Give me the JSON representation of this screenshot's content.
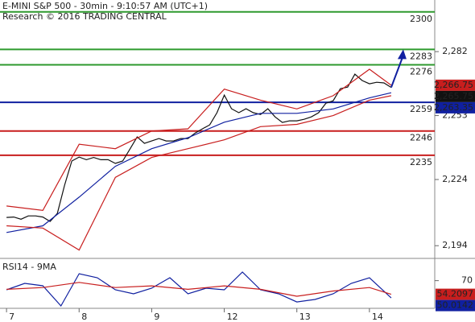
{
  "chart_data": {
    "type": "line",
    "title": "E-MINI S&P 500 - 30min - 9:10:57 AM (UTC+1)",
    "subtitle": "Research © 2016 TRADING CENTRAL",
    "xlim": [
      -0.09,
      5.9
    ],
    "xticks": [
      {
        "value": 0,
        "label": "7"
      },
      {
        "value": 1,
        "label": "8"
      },
      {
        "value": 2,
        "label": "9"
      },
      {
        "value": 3,
        "label": "12"
      },
      {
        "value": 4,
        "label": "13"
      },
      {
        "value": 5,
        "label": "14"
      }
    ],
    "ylim": [
      2188.6,
      2305.4
    ],
    "yticks": [
      {
        "value": 2282,
        "label": "2,282"
      },
      {
        "value": 2253,
        "label": "2,253"
      },
      {
        "value": 2224,
        "label": "2,224"
      },
      {
        "value": 2194,
        "label": "2,194"
      }
    ],
    "levels": [
      {
        "value": 2300,
        "color": "#2e9a2e"
      },
      {
        "value": 2283,
        "color": "#2e9a2e"
      },
      {
        "value": 2276,
        "color": "#2e9a2e"
      },
      {
        "value": 2259,
        "color": "#1020a0"
      },
      {
        "value": 2246,
        "color": "#c81e1e"
      },
      {
        "value": 2235,
        "color": "#c81e1e"
      }
    ],
    "series": [
      {
        "color": "#111111",
        "last_label": "2,265.75",
        "x": [
          0,
          0.1,
          0.2,
          0.3,
          0.4,
          0.5,
          0.6,
          0.7,
          0.8,
          0.9,
          1,
          1.1,
          1.2,
          1.3,
          1.4,
          1.5,
          1.6,
          1.7,
          1.8,
          1.9,
          2,
          2.1,
          2.2,
          2.3,
          2.4,
          2.5,
          2.6,
          2.7,
          2.8,
          2.9,
          3,
          3.1,
          3.2,
          3.3,
          3.4,
          3.5,
          3.6,
          3.7,
          3.8,
          3.9,
          4,
          4.1,
          4.2,
          4.3,
          4.4,
          4.5,
          4.6,
          4.7,
          4.8,
          4.9,
          5,
          5.1,
          5.2,
          5.3
        ],
        "values": [
          2206.8,
          2207,
          2206,
          2207.5,
          2207.5,
          2207,
          2205,
          2208.6,
          2221.4,
          2232.4,
          2234.2,
          2233,
          2234,
          2233,
          2233,
          2231.3,
          2232.4,
          2237.8,
          2243.3,
          2240.4,
          2241.5,
          2242.6,
          2241.5,
          2241.5,
          2242.6,
          2242.6,
          2245.1,
          2247,
          2248.8,
          2254.3,
          2262.3,
          2256.1,
          2254.3,
          2256.1,
          2254.3,
          2253.5,
          2256.1,
          2252.4,
          2249.9,
          2250.6,
          2250.6,
          2251.3,
          2252.4,
          2254.3,
          2258.6,
          2259.7,
          2265.2,
          2265.9,
          2271.8,
          2268.9,
          2267.4,
          2268.1,
          2267.8,
          2265.75
        ]
      },
      {
        "color": "#1020a0",
        "last_label": "2,263.35",
        "x": [
          0,
          0.5,
          1,
          1.5,
          2,
          2.5,
          3,
          3.5,
          4,
          4.5,
          5,
          5.3
        ],
        "values": [
          2200,
          2203,
          2216,
          2230,
          2238,
          2243,
          2250,
          2254,
          2254,
          2256,
          2261,
          2263.35
        ]
      },
      {
        "color": "#c81e1e",
        "last_label": "2,266.75",
        "x": [
          0,
          0.5,
          1,
          1.5,
          2,
          2.5,
          3,
          3.5,
          4,
          4.5,
          5,
          5.3
        ],
        "values": [
          2212,
          2210,
          2240,
          2238,
          2246,
          2247,
          2265,
          2260,
          2256,
          2262,
          2274,
          2266.75
        ]
      },
      {
        "color": "#c81e1e",
        "x": [
          0,
          0.5,
          1,
          1.5,
          2,
          2.5,
          3,
          3.5,
          4,
          4.5,
          5,
          5.3
        ],
        "values": [
          2203,
          2202,
          2192,
          2225,
          2234,
          2238,
          2242,
          2248,
          2249,
          2253,
          2260,
          2262
        ]
      }
    ],
    "target": 2283,
    "indicator": {
      "title": "RSI14 - 9MA",
      "ylim": [
        38,
        92
      ],
      "yticks": [
        70
      ],
      "series": [
        {
          "color": "#1020a0",
          "last_label": "50.0142",
          "x": [
            0,
            0.25,
            0.5,
            0.75,
            1,
            1.25,
            1.5,
            1.75,
            2,
            2.25,
            2.5,
            2.75,
            3,
            3.25,
            3.5,
            3.75,
            4,
            4.25,
            4.5,
            4.75,
            5,
            5.3
          ],
          "values": [
            59.4,
            66.9,
            64.1,
            40.8,
            78,
            73.4,
            59.4,
            54.8,
            61.3,
            73.4,
            54.8,
            61.3,
            59.4,
            79.9,
            59.4,
            54.8,
            45.4,
            48.2,
            54.8,
            66.9,
            73.4,
            50.0142
          ]
        },
        {
          "color": "#c81e1e",
          "last_label": "54.2097",
          "x": [
            0,
            0.5,
            1,
            1.5,
            2,
            2.5,
            3,
            3.5,
            4,
            4.5,
            5,
            5.3
          ],
          "values": [
            60,
            62,
            68,
            62,
            64,
            60,
            64,
            60,
            52,
            58,
            62,
            54.2097
          ]
        }
      ]
    }
  }
}
